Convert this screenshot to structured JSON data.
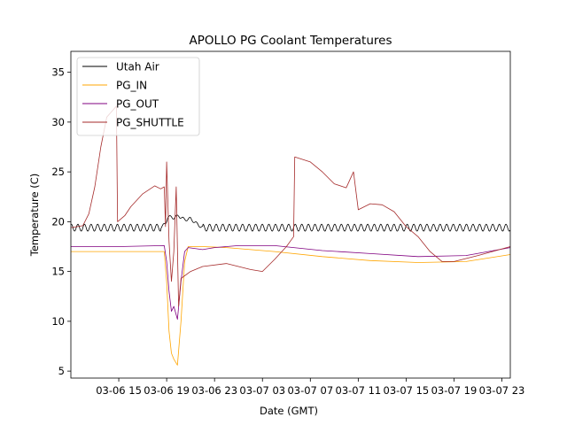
{
  "chart_data": {
    "type": "line",
    "title": "APOLLO PG Coolant Temperatures",
    "xlabel": "Date (GMT)",
    "ylabel": "Temperature (C)",
    "x_unit": "hours since 2019-03-06 12:00 GMT",
    "xlim": [
      -1.0,
      35.7
    ],
    "ylim": [
      4.3,
      37.1
    ],
    "x_ticks": [
      {
        "value": 3,
        "label": "03-06 15"
      },
      {
        "value": 7,
        "label": "03-06 19"
      },
      {
        "value": 11,
        "label": "03-06 23"
      },
      {
        "value": 15,
        "label": "03-07 03"
      },
      {
        "value": 19,
        "label": "03-07 07"
      },
      {
        "value": 23,
        "label": "03-07 11"
      },
      {
        "value": 27,
        "label": "03-07 15"
      },
      {
        "value": 31,
        "label": "03-07 19"
      },
      {
        "value": 35,
        "label": "03-07 23"
      }
    ],
    "y_ticks": [
      5,
      10,
      15,
      20,
      25,
      30,
      35
    ],
    "legend_position": "top-left",
    "series": [
      {
        "name": "Utah Air",
        "color": "#000000",
        "oscillation": {
          "amplitude": 0.35,
          "period": 0.55
        },
        "points": [
          [
            -1.0,
            19.4
          ],
          [
            6.5,
            19.4
          ],
          [
            6.9,
            19.8
          ],
          [
            7.1,
            20.5
          ],
          [
            7.6,
            20.4
          ],
          [
            8.0,
            20.6
          ],
          [
            8.5,
            20.2
          ],
          [
            9.0,
            20.3
          ],
          [
            9.5,
            19.8
          ],
          [
            10.0,
            19.4
          ],
          [
            35.7,
            19.4
          ]
        ]
      },
      {
        "name": "PG_IN",
        "color": "#FFA500",
        "points": [
          [
            -1.0,
            17.0
          ],
          [
            3.0,
            17.0
          ],
          [
            6.8,
            17.0
          ],
          [
            7.0,
            14.0
          ],
          [
            7.2,
            9.0
          ],
          [
            7.4,
            6.8
          ],
          [
            7.6,
            6.2
          ],
          [
            7.9,
            5.6
          ],
          [
            8.2,
            10.0
          ],
          [
            8.5,
            16.0
          ],
          [
            8.8,
            17.5
          ],
          [
            10.0,
            17.5
          ],
          [
            12.0,
            17.4
          ],
          [
            16.0,
            17.0
          ],
          [
            20.0,
            16.5
          ],
          [
            24.0,
            16.1
          ],
          [
            28.0,
            15.9
          ],
          [
            32.0,
            16.0
          ],
          [
            35.7,
            16.7
          ]
        ]
      },
      {
        "name": "PG_OUT",
        "color": "#800080",
        "points": [
          [
            -1.0,
            17.5
          ],
          [
            3.0,
            17.5
          ],
          [
            6.8,
            17.6
          ],
          [
            7.0,
            16.0
          ],
          [
            7.2,
            13.0
          ],
          [
            7.4,
            11.0
          ],
          [
            7.6,
            11.5
          ],
          [
            7.9,
            10.2
          ],
          [
            8.2,
            14.0
          ],
          [
            8.5,
            17.0
          ],
          [
            8.8,
            17.4
          ],
          [
            10.0,
            17.2
          ],
          [
            11.0,
            17.4
          ],
          [
            13.0,
            17.6
          ],
          [
            16.0,
            17.6
          ],
          [
            20.0,
            17.1
          ],
          [
            24.0,
            16.8
          ],
          [
            28.0,
            16.5
          ],
          [
            32.0,
            16.6
          ],
          [
            35.7,
            17.4
          ]
        ]
      },
      {
        "name": "PG_SHUTTLE",
        "color": "#A52A2A",
        "points": [
          [
            -1.0,
            19.4
          ],
          [
            0.0,
            19.6
          ],
          [
            0.5,
            20.8
          ],
          [
            1.0,
            23.5
          ],
          [
            1.5,
            27.5
          ],
          [
            2.0,
            30.5
          ],
          [
            2.8,
            31.6
          ],
          [
            2.9,
            20.0
          ],
          [
            3.5,
            20.6
          ],
          [
            4.0,
            21.5
          ],
          [
            5.0,
            22.8
          ],
          [
            6.0,
            23.6
          ],
          [
            6.5,
            23.3
          ],
          [
            6.8,
            23.5
          ],
          [
            6.9,
            19.5
          ],
          [
            7.0,
            26.0
          ],
          [
            7.2,
            18.0
          ],
          [
            7.4,
            14.0
          ],
          [
            7.6,
            17.0
          ],
          [
            7.8,
            23.5
          ],
          [
            8.0,
            11.5
          ],
          [
            8.2,
            14.3
          ],
          [
            9.0,
            15.0
          ],
          [
            10.0,
            15.5
          ],
          [
            12.0,
            15.8
          ],
          [
            14.0,
            15.2
          ],
          [
            15.0,
            15.0
          ],
          [
            16.0,
            16.2
          ],
          [
            17.0,
            17.5
          ],
          [
            17.6,
            18.5
          ],
          [
            17.7,
            26.5
          ],
          [
            19.0,
            26.0
          ],
          [
            20.0,
            25.0
          ],
          [
            21.0,
            23.8
          ],
          [
            22.0,
            23.4
          ],
          [
            22.6,
            25.0
          ],
          [
            23.0,
            21.2
          ],
          [
            24.0,
            21.8
          ],
          [
            25.0,
            21.7
          ],
          [
            26.0,
            21.0
          ],
          [
            27.0,
            19.5
          ],
          [
            28.0,
            18.5
          ],
          [
            29.0,
            17.0
          ],
          [
            30.0,
            16.0
          ],
          [
            31.0,
            16.0
          ],
          [
            33.0,
            16.6
          ],
          [
            35.7,
            17.5
          ]
        ]
      }
    ]
  }
}
